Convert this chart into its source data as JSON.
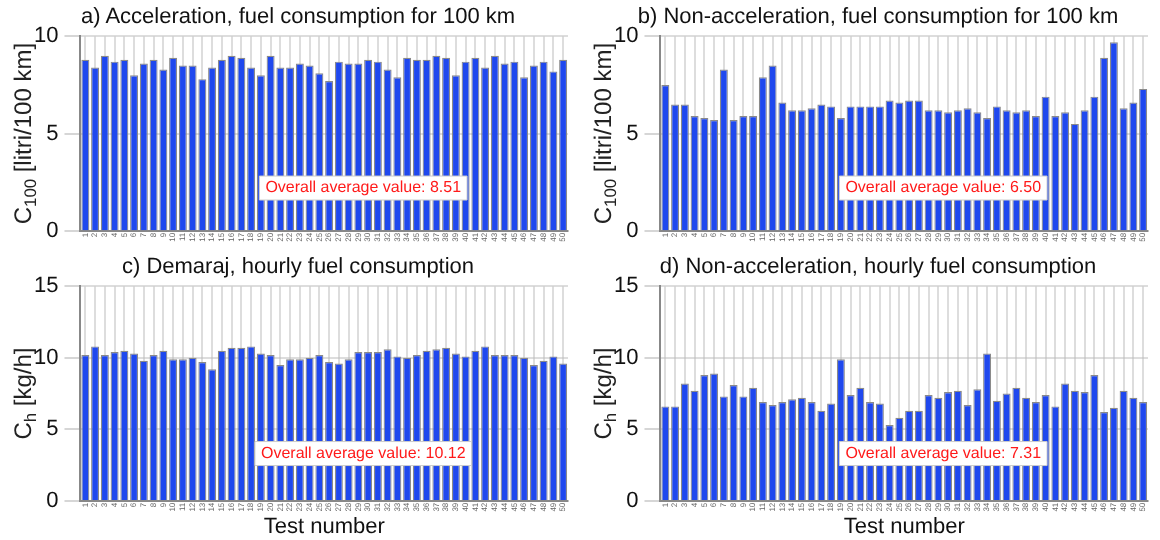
{
  "chart_data": [
    {
      "type": "bar",
      "title": "a) Acceleration, fuel consumption for 100 km",
      "ylabel": "C$_{100}$ [litri/100 km]",
      "categories": [
        "1",
        "2",
        "3",
        "4",
        "5",
        "6",
        "7",
        "8",
        "9",
        "10",
        "11",
        "12",
        "13",
        "14",
        "15",
        "16",
        "17",
        "18",
        "19",
        "20",
        "21",
        "22",
        "23",
        "24",
        "25",
        "26",
        "27",
        "28",
        "29",
        "30",
        "31",
        "32",
        "33",
        "34",
        "35",
        "36",
        "37",
        "38",
        "39",
        "40",
        "41",
        "42",
        "43",
        "44",
        "45",
        "46",
        "47",
        "48",
        "49",
        "50"
      ],
      "values": [
        8.8,
        8.4,
        9.0,
        8.7,
        8.8,
        8.0,
        8.6,
        8.8,
        8.3,
        8.9,
        8.5,
        8.5,
        7.8,
        8.4,
        8.8,
        9.0,
        8.9,
        8.4,
        8.0,
        9.0,
        8.4,
        8.4,
        8.6,
        8.5,
        8.1,
        7.7,
        8.7,
        8.6,
        8.6,
        8.8,
        8.7,
        8.3,
        7.9,
        8.9,
        8.8,
        8.8,
        9.0,
        8.9,
        8.0,
        8.7,
        8.9,
        8.4,
        9.0,
        8.6,
        8.7,
        7.9,
        8.5,
        8.7,
        8.2,
        8.8
      ],
      "color": "#1f48ee",
      "ylim": [
        0,
        10
      ],
      "yticks": [
        0,
        5,
        10
      ],
      "grid": true,
      "annotations": [
        "Overall average value: 8.51"
      ]
    },
    {
      "type": "bar",
      "title": "b) Non-acceleration, fuel consumption for 100 km",
      "ylabel": "C$_{100}$ [litri/100 km]",
      "categories": [
        "1",
        "2",
        "3",
        "4",
        "5",
        "6",
        "7",
        "8",
        "9",
        "10",
        "11",
        "12",
        "13",
        "14",
        "15",
        "16",
        "17",
        "18",
        "19",
        "20",
        "21",
        "22",
        "23",
        "24",
        "25",
        "26",
        "27",
        "28",
        "29",
        "30",
        "31",
        "32",
        "33",
        "34",
        "35",
        "36",
        "37",
        "38",
        "39",
        "40",
        "41",
        "42",
        "43",
        "44",
        "45",
        "46",
        "47",
        "48",
        "49",
        "50"
      ],
      "values": [
        7.5,
        6.5,
        6.5,
        5.9,
        5.8,
        5.7,
        8.3,
        5.7,
        5.9,
        5.9,
        7.9,
        8.5,
        6.6,
        6.2,
        6.2,
        6.3,
        6.5,
        6.4,
        5.8,
        6.4,
        6.4,
        6.4,
        6.4,
        6.7,
        6.6,
        6.7,
        6.7,
        6.2,
        6.2,
        6.1,
        6.2,
        6.3,
        6.1,
        5.8,
        6.4,
        6.2,
        6.1,
        6.2,
        5.9,
        6.9,
        5.9,
        6.1,
        5.5,
        6.2,
        6.9,
        8.9,
        9.7,
        6.3,
        6.6,
        7.3
      ],
      "color": "#1f48ee",
      "ylim": [
        0,
        10
      ],
      "yticks": [
        0,
        5,
        10
      ],
      "grid": true,
      "annotations": [
        "Overall average value: 6.50"
      ]
    },
    {
      "type": "bar",
      "title": "c) Demaraj, hourly fuel consumption",
      "xlabel": "Test number",
      "ylabel": "C$_{h}$ [kg/h]",
      "categories": [
        "1",
        "2",
        "3",
        "4",
        "5",
        "6",
        "7",
        "8",
        "9",
        "10",
        "11",
        "12",
        "13",
        "14",
        "15",
        "16",
        "17",
        "18",
        "19",
        "20",
        "21",
        "22",
        "23",
        "24",
        "25",
        "26",
        "27",
        "28",
        "29",
        "30",
        "31",
        "32",
        "33",
        "34",
        "35",
        "36",
        "37",
        "38",
        "39",
        "40",
        "41",
        "42",
        "43",
        "44",
        "45",
        "46",
        "47",
        "48",
        "49",
        "50"
      ],
      "values": [
        10.2,
        10.8,
        10.2,
        10.4,
        10.5,
        10.3,
        9.8,
        10.2,
        10.5,
        9.9,
        9.9,
        10.0,
        9.7,
        9.2,
        10.5,
        10.7,
        10.7,
        10.8,
        10.3,
        10.2,
        9.5,
        9.9,
        9.9,
        10.0,
        10.2,
        9.7,
        9.6,
        9.9,
        10.4,
        10.4,
        10.4,
        10.6,
        10.1,
        10.0,
        10.2,
        10.5,
        10.6,
        10.7,
        10.3,
        10.1,
        10.5,
        10.8,
        10.2,
        10.2,
        10.2,
        10.0,
        9.5,
        9.8,
        10.1,
        9.6
      ],
      "color": "#1f48ee",
      "ylim": [
        0,
        15
      ],
      "yticks": [
        0,
        5,
        10,
        15
      ],
      "grid": true,
      "annotations": [
        "Overall average value: 10.12"
      ]
    },
    {
      "type": "bar",
      "title": "d) Non-acceleration, hourly fuel consumption",
      "xlabel": "Test number",
      "ylabel": "C$_{h}$ [kg/h]",
      "categories": [
        "1",
        "2",
        "3",
        "4",
        "5",
        "6",
        "7",
        "8",
        "9",
        "10",
        "11",
        "12",
        "13",
        "14",
        "15",
        "16",
        "17",
        "18",
        "19",
        "20",
        "21",
        "22",
        "23",
        "24",
        "25",
        "26",
        "27",
        "28",
        "29",
        "30",
        "31",
        "32",
        "33",
        "34",
        "35",
        "36",
        "37",
        "38",
        "39",
        "40",
        "41",
        "42",
        "43",
        "44",
        "45",
        "46",
        "47",
        "48",
        "49",
        "50"
      ],
      "values": [
        6.6,
        6.6,
        8.2,
        7.7,
        8.8,
        8.9,
        7.3,
        8.1,
        7.3,
        7.9,
        6.9,
        6.7,
        6.9,
        7.1,
        7.2,
        6.9,
        6.3,
        6.8,
        9.9,
        7.4,
        7.9,
        6.9,
        6.8,
        5.3,
        5.8,
        6.3,
        6.3,
        7.4,
        7.2,
        7.6,
        7.7,
        6.7,
        7.8,
        10.3,
        7.0,
        7.5,
        7.9,
        7.2,
        6.9,
        7.4,
        6.6,
        8.2,
        7.7,
        7.6,
        8.8,
        6.2,
        6.5,
        7.7,
        7.2,
        6.9
      ],
      "color": "#1f48ee",
      "ylim": [
        0,
        15
      ],
      "yticks": [
        0,
        5,
        10,
        15
      ],
      "grid": true,
      "annotations": [
        "Overall average value: 7.31"
      ]
    }
  ]
}
